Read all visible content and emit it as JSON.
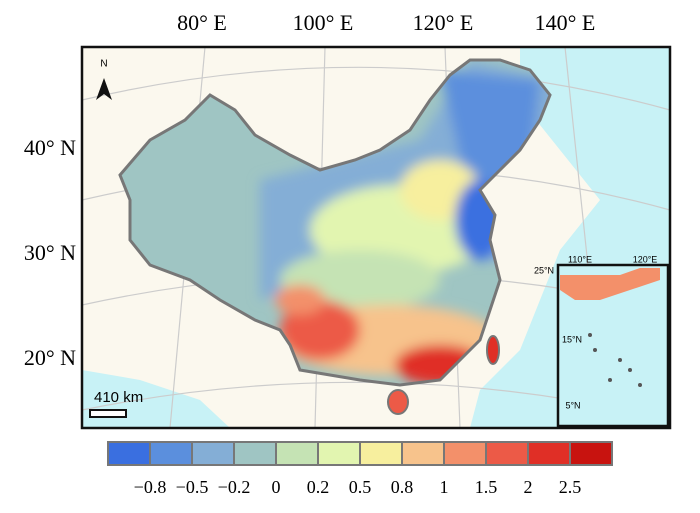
{
  "map": {
    "lon_labels": [
      "80° E",
      "100° E",
      "120° E",
      "140° E"
    ],
    "lat_labels": [
      "40° N",
      "30° N",
      "20° N"
    ],
    "north_label": "N",
    "scale_label": "410 km",
    "inset": {
      "lon_labels": [
        "110°E",
        "120°E"
      ],
      "lat_labels": [
        "25°N",
        "15°N",
        "5°N"
      ]
    }
  },
  "legend": {
    "colors": [
      "#3a6fe0",
      "#5b8fdd",
      "#84aed6",
      "#9fc5c3",
      "#c5e3b4",
      "#e2f5b0",
      "#f7ef9e",
      "#f7c38c",
      "#f3906a",
      "#ec5a47",
      "#e02f26",
      "#c8130f"
    ],
    "labels": [
      "−0.8",
      "−0.5",
      "−0.2",
      "0",
      "0.2",
      "0.5",
      "0.8",
      "1",
      "1.5",
      "2",
      "2.5"
    ]
  }
}
